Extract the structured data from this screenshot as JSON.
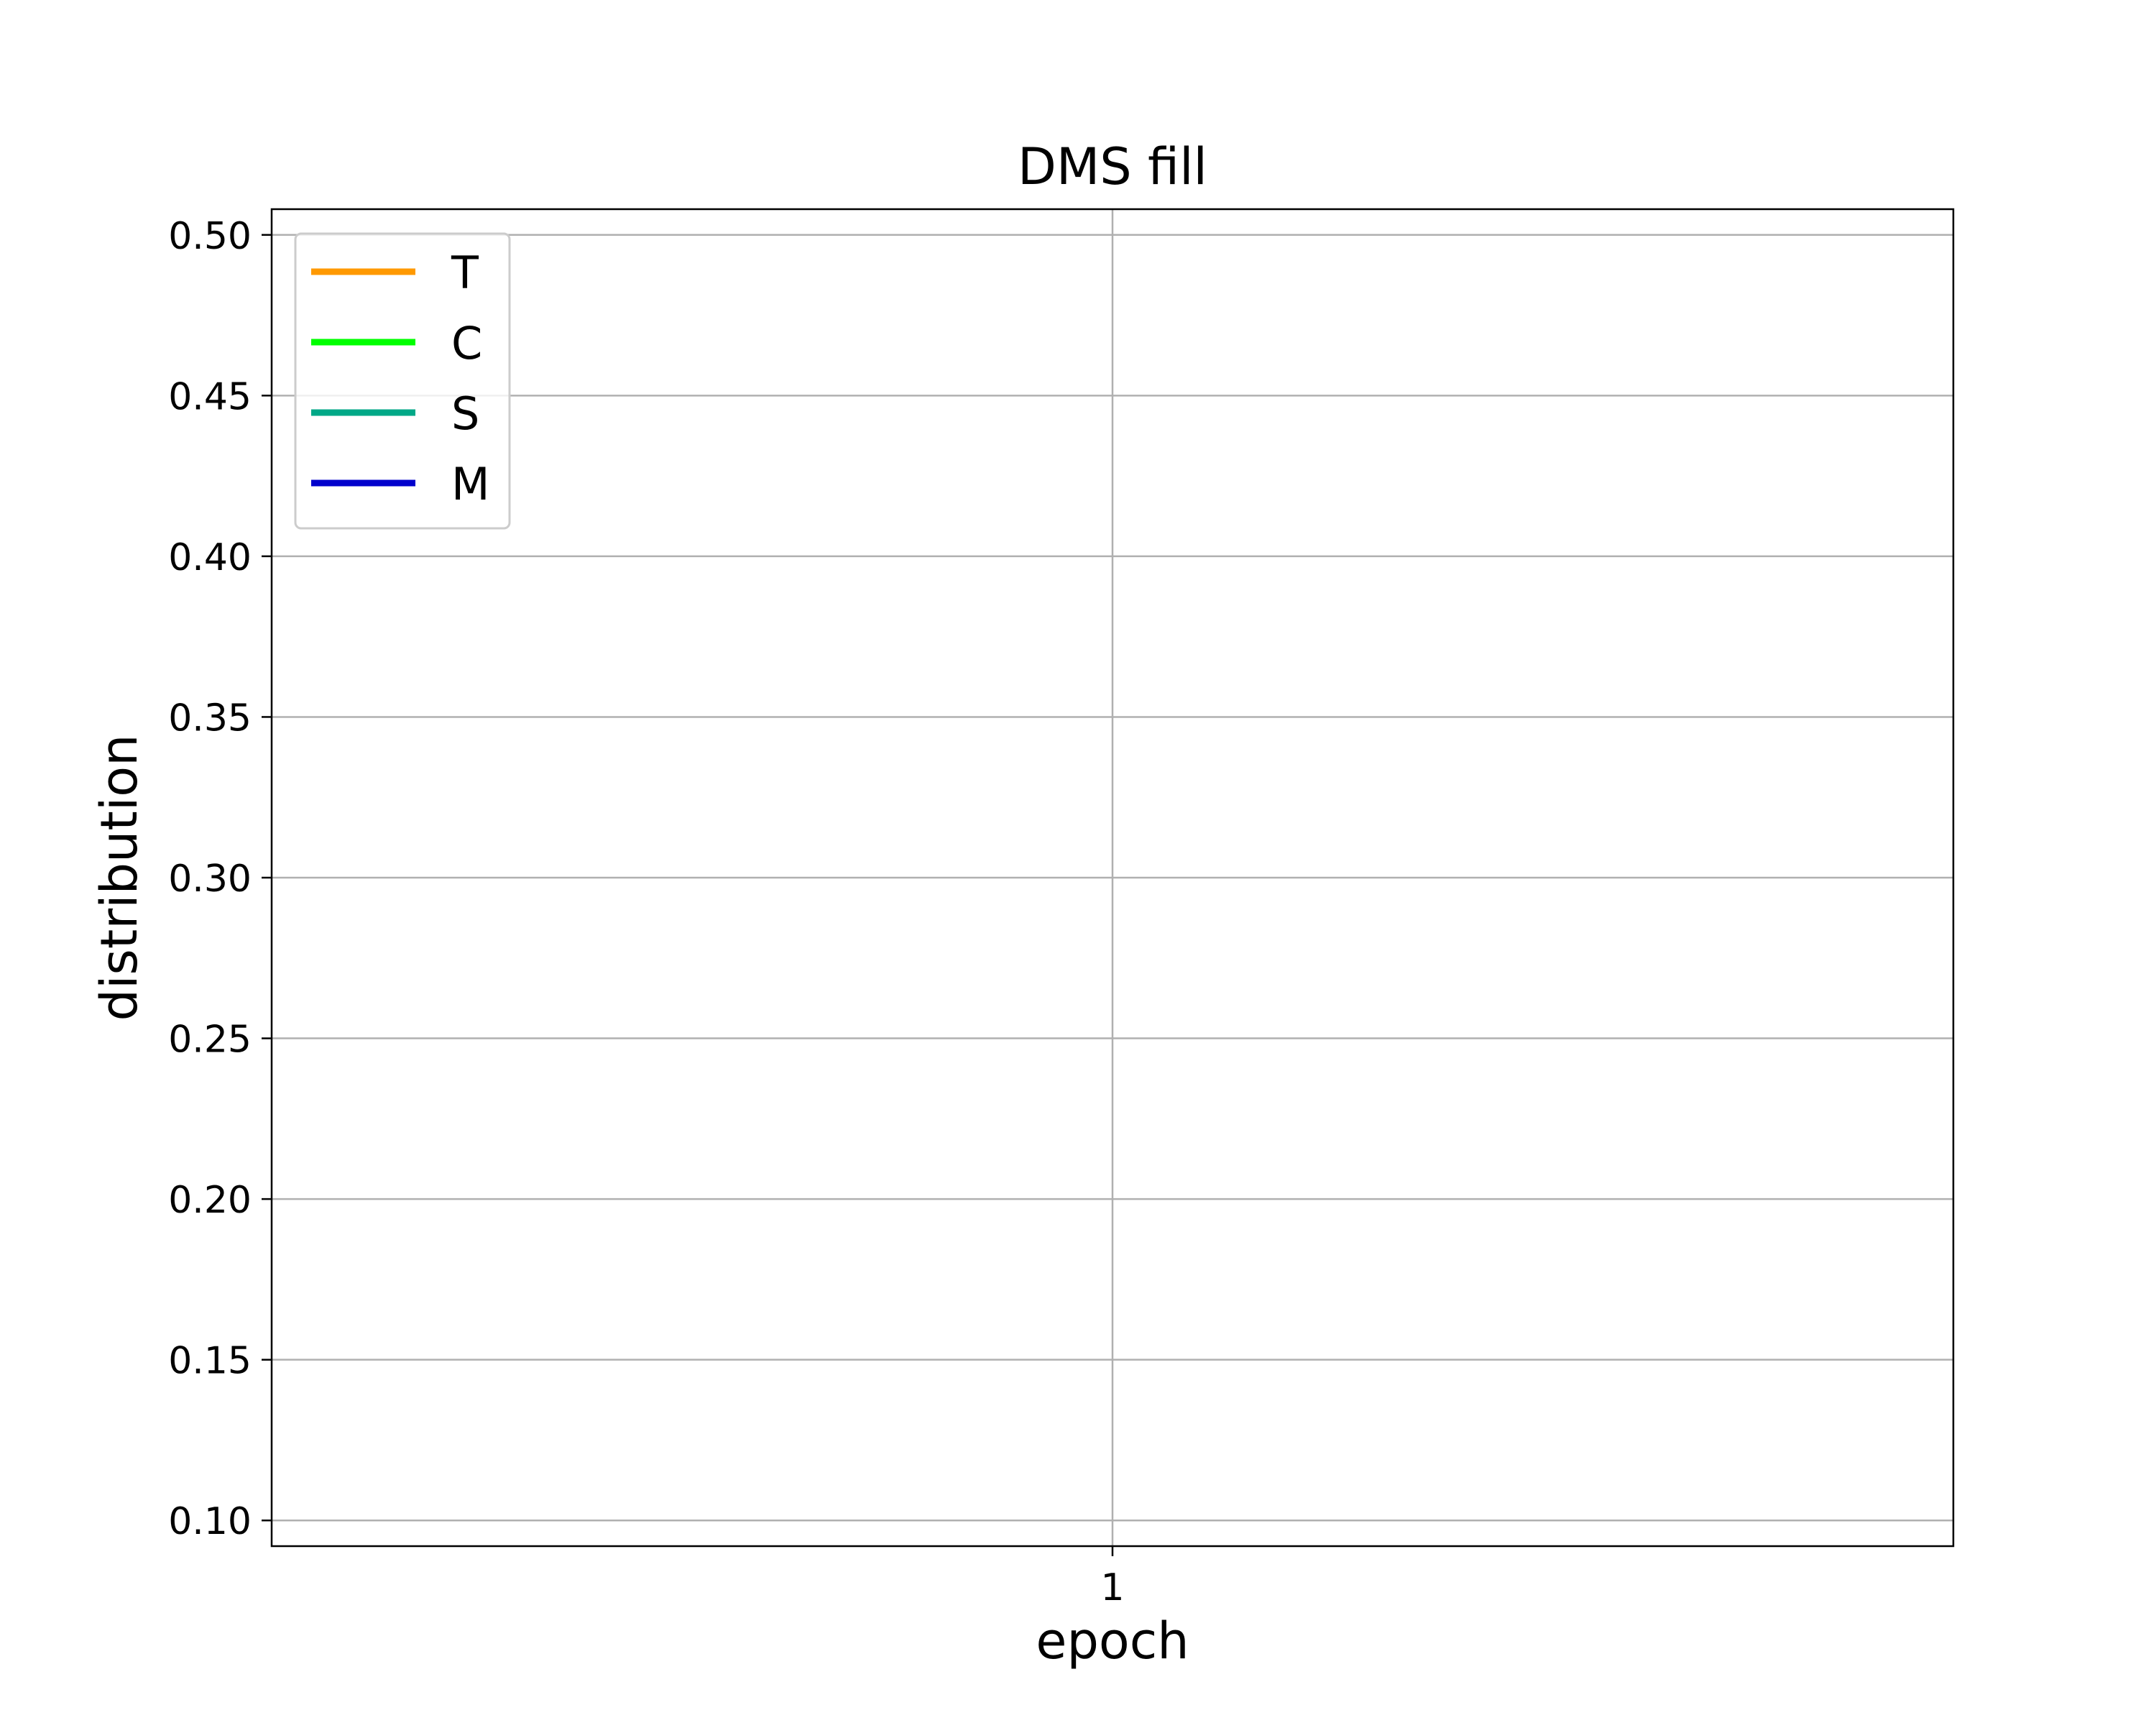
{
  "chart_data": {
    "type": "line",
    "title": "DMS fill",
    "xlabel": "epoch",
    "ylabel": "distribution",
    "x_ticks": [
      "1"
    ],
    "y_ticks": [
      "0.10",
      "0.15",
      "0.20",
      "0.25",
      "0.30",
      "0.35",
      "0.40",
      "0.45",
      "0.50"
    ],
    "ylim": [
      0.092,
      0.508
    ],
    "grid": true,
    "legend_position": "top-left",
    "series": [
      {
        "name": "T",
        "color": "#ff9900",
        "values": []
      },
      {
        "name": "C",
        "color": "#00ff00",
        "values": []
      },
      {
        "name": "S",
        "color": "#00a887",
        "values": []
      },
      {
        "name": "M",
        "color": "#0000cc",
        "values": []
      }
    ]
  }
}
